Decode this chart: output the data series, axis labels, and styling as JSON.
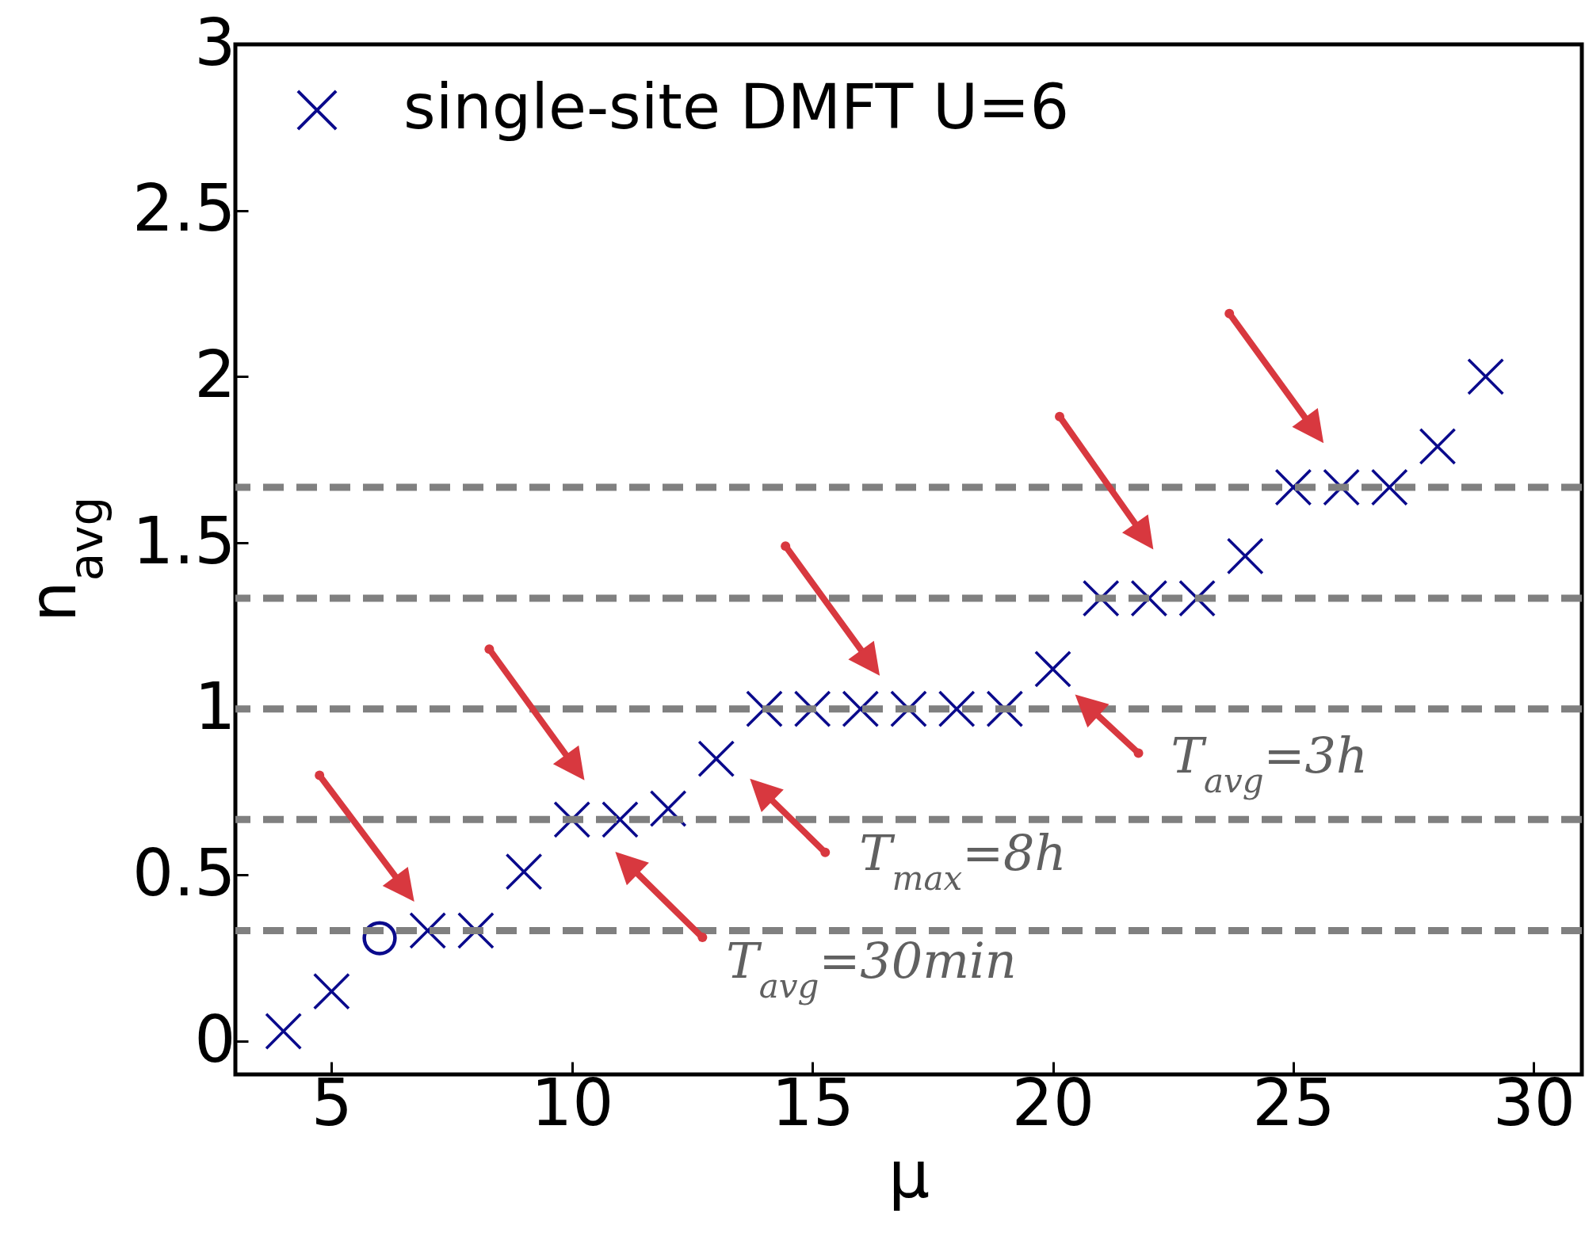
{
  "chart_data": {
    "type": "scatter",
    "xlabel": "μ",
    "ylabel": "n$_{avg}$",
    "xlim": [
      3,
      31
    ],
    "xticks": [
      5,
      10,
      15,
      20,
      25,
      30
    ],
    "ylim": [
      -0.1,
      3
    ],
    "yticks": [
      0,
      0.5,
      1,
      1.5,
      2,
      2.5,
      3
    ],
    "legend": "top left",
    "series": [
      {
        "name": "single-site DMFT U=6",
        "color": "#0a0a8c",
        "marker": "cross",
        "x": [
          4,
          5,
          7,
          8,
          9,
          10,
          11,
          12,
          13,
          14,
          15,
          16,
          17,
          18,
          19,
          20,
          21,
          22,
          23,
          24,
          25,
          26,
          27,
          28,
          29
        ],
        "values": [
          0.03,
          0.15,
          0.333,
          0.333,
          0.51,
          0.667,
          0.667,
          0.7,
          0.85,
          1,
          1,
          1,
          1,
          1,
          1,
          1.12,
          1.333,
          1.333,
          1.333,
          1.46,
          1.667,
          1.667,
          1.667,
          1.79,
          2
        ]
      },
      {
        "color": "#0a0a8c",
        "marker": "circle",
        "x": [
          6
        ],
        "values": [
          0.31
        ]
      }
    ],
    "ref_lines": [
      {
        "axis": "y",
        "value": 0.333,
        "color": "#808080",
        "line_style": "dashed"
      },
      {
        "axis": "y",
        "value": 0.667,
        "color": "#808080",
        "line_style": "dashed"
      },
      {
        "axis": "y",
        "value": 1,
        "color": "#808080",
        "line_style": "dashed"
      },
      {
        "axis": "y",
        "value": 1.333,
        "color": "#808080",
        "line_style": "dashed"
      },
      {
        "axis": "y",
        "value": 1.667,
        "color": "#808080",
        "line_style": "dashed"
      }
    ],
    "annotations": [
      "T$_{avg}$=30min",
      "T$_{max}$=8h",
      {
        "text": "T$_{avg}$=3h",
        "x": 20,
        "y": 1.12
      }
    ]
  }
}
